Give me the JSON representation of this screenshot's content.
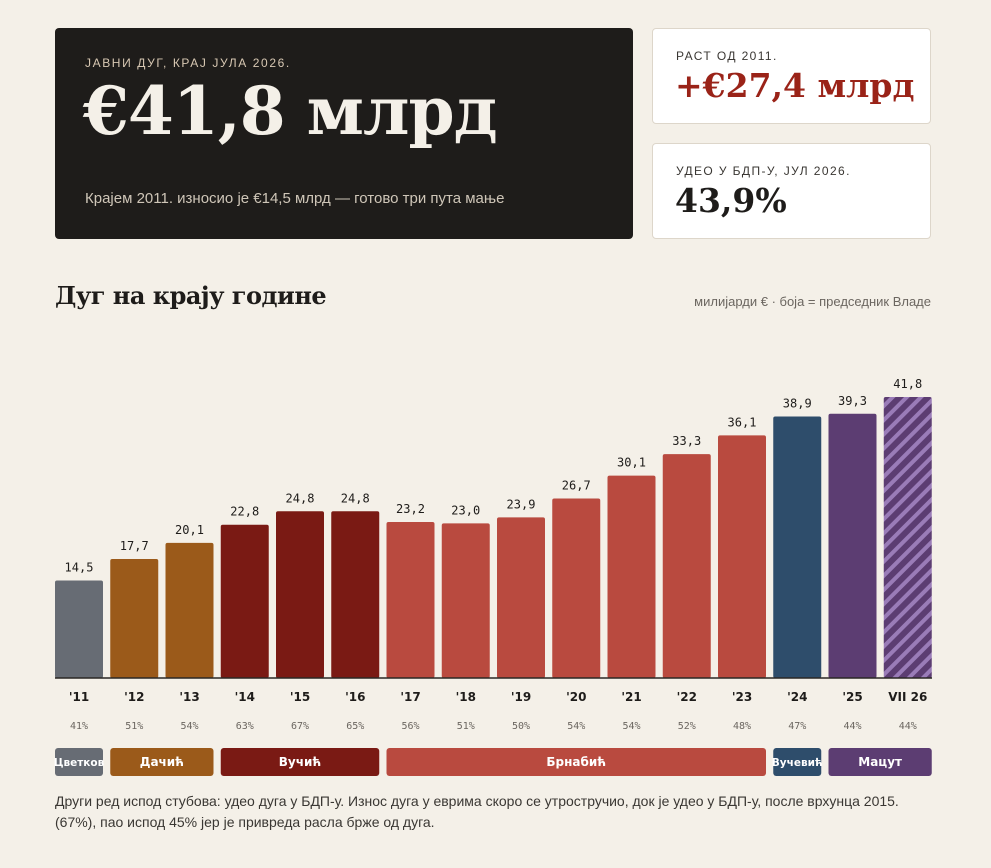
{
  "hero": {
    "kicker": "ЈАВНИ ДУГ, КРАЈ ЈУЛА 2026.",
    "value": "€41,8 млрд",
    "subtitle": "Крајем 2011. износио је €14,5 млрд — готово три пута мање"
  },
  "cards": {
    "growth": {
      "kicker": "РАСТ ОД 2011.",
      "value": "+€27,4 млрд"
    },
    "gdp_share": {
      "kicker": "УДЕО У БДП-У, ЈУЛ 2026.",
      "value": "43,9%"
    }
  },
  "section": {
    "title": "Дуг на крају године",
    "note": "милијарди € · боја = председник Владе"
  },
  "chart_data": {
    "type": "bar",
    "title": "Дуг на крају године",
    "categories": [
      "'11",
      "'12",
      "'13",
      "'14",
      "'15",
      "'16",
      "'17",
      "'18",
      "'19",
      "'20",
      "'21",
      "'22",
      "'23",
      "'24",
      "'25",
      "VII 26"
    ],
    "values": [
      14.5,
      17.7,
      20.1,
      22.8,
      24.8,
      24.8,
      23.2,
      23.0,
      23.9,
      26.7,
      30.1,
      33.3,
      36.1,
      38.9,
      39.3,
      41.8
    ],
    "value_labels": [
      "14,5",
      "17,7",
      "20,1",
      "22,8",
      "24,8",
      "24,8",
      "23,2",
      "23,0",
      "23,9",
      "26,7",
      "30,1",
      "33,3",
      "36,1",
      "38,9",
      "39,3",
      "41,8"
    ],
    "gdp_share_labels": [
      "41%",
      "51%",
      "54%",
      "63%",
      "67%",
      "65%",
      "56%",
      "51%",
      "50%",
      "54%",
      "54%",
      "52%",
      "48%",
      "47%",
      "44%",
      "44%"
    ],
    "bar_pm": [
      0,
      1,
      1,
      2,
      2,
      2,
      3,
      3,
      3,
      3,
      3,
      3,
      3,
      4,
      5,
      5
    ],
    "last_bar_hatched": true,
    "ylim": [
      0,
      41.8
    ],
    "prime_ministers": [
      {
        "name": "Цветковић",
        "label": "Цветков",
        "color": "#676c74",
        "from": 0,
        "to": 0
      },
      {
        "name": "Дачић",
        "label": "Дачић",
        "color": "#9b5a1a",
        "from": 1,
        "to": 2
      },
      {
        "name": "Вучић",
        "label": "Вучић",
        "color": "#7a1a14",
        "from": 3,
        "to": 5
      },
      {
        "name": "Брнабић",
        "label": "Брнабић",
        "color": "#b94a3f",
        "from": 6,
        "to": 12
      },
      {
        "name": "Вучевић",
        "label": "Вучевић",
        "color": "#2e4d6b",
        "from": 13,
        "to": 13
      },
      {
        "name": "Мацут",
        "label": "Мацут",
        "color": "#5c3d72",
        "from": 14,
        "to": 15
      }
    ]
  },
  "footnote": "Други ред испод стубова: удео дуга у БДП-у. Износ дуга у еврима скоро се утростручио, док је удео у БДП-у, после врхунца 2015. (67%), пао испод 45% јер је привреда расла брже од дуга."
}
